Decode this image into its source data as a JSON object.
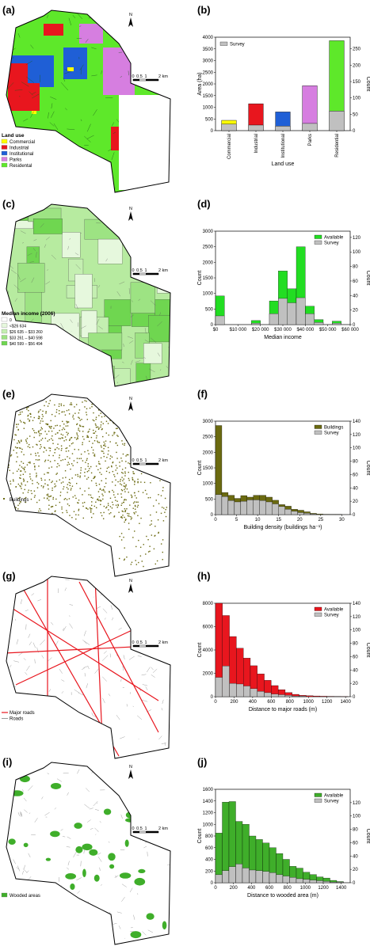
{
  "panels": [
    {
      "label": "(a)",
      "map": {
        "kind": "landuse",
        "north": "N",
        "scale": [
          "0",
          "0.5",
          "1",
          "2 km"
        ],
        "legend_title": "Land use",
        "legend": [
          {
            "label": "Commercial",
            "color": "#ffff00"
          },
          {
            "label": "Industrial",
            "color": "#e8161e"
          },
          {
            "label": "Institutional",
            "color": "#1f5fd6"
          },
          {
            "label": "Parks",
            "color": "#d67ee0"
          },
          {
            "label": "Residental",
            "color": "#5ee82a"
          }
        ]
      }
    },
    {
      "label": "(c)",
      "map": {
        "kind": "income",
        "north": "N",
        "scale": [
          "0",
          "0.5",
          "1",
          "2 km"
        ],
        "legend_title": "Median income (2006)",
        "legend": [
          {
            "label": "0",
            "color": "#ffffff"
          },
          {
            "label": "<$26 634",
            "color": "#e6f8dd"
          },
          {
            "label": "$26 635 – $33 260",
            "color": "#c4efb1"
          },
          {
            "label": "$33 261 – $40 598",
            "color": "#9de383"
          },
          {
            "label": "$40 599 – $56 494",
            "color": "#6fd650"
          }
        ]
      }
    },
    {
      "label": "(e)",
      "map": {
        "kind": "buildings",
        "north": "N",
        "scale": [
          "0",
          "0.5",
          "1",
          "2 km"
        ],
        "legend_title": "",
        "legend": [
          {
            "label": "Buildings",
            "color": "#6b6a10"
          }
        ]
      }
    },
    {
      "label": "(g)",
      "map": {
        "kind": "roads",
        "north": "N",
        "scale": [
          "0",
          "0.5",
          "1",
          "2 km"
        ],
        "legend_title": "",
        "legend": [
          {
            "label": "Major roads",
            "color": "#e8161e"
          },
          {
            "label": "Roads",
            "color": "#555555"
          }
        ]
      }
    },
    {
      "label": "(i)",
      "map": {
        "kind": "wooded",
        "north": "N",
        "scale": [
          "0",
          "0.5",
          "1",
          "2 km"
        ],
        "legend_title": "",
        "legend": [
          {
            "label": "Wooded areas",
            "color": "#3fae2a"
          }
        ]
      }
    }
  ],
  "chart_data": [
    {
      "label": "(b)",
      "type": "bar",
      "xlabel": "Land use",
      "ylabel": "Area (ha)",
      "y2label": "Count",
      "categories": [
        "Commercial",
        "Industrial",
        "Institutional",
        "Parks",
        "Residential"
      ],
      "ylim": [
        0,
        4000
      ],
      "yticks": [
        0,
        500,
        1000,
        1500,
        2000,
        2500,
        3000,
        3500,
        4000
      ],
      "y2lim": [
        0,
        285.7
      ],
      "y2ticks": [
        0,
        50,
        100,
        150,
        200,
        250
      ],
      "series": [
        {
          "values": [
            440,
            1150,
            800,
            1920,
            3850
          ],
          "colors": [
            "#ffff00",
            "#e8161e",
            "#1f5fd6",
            "#d67ee0",
            "#5ee82a"
          ]
        },
        {
          "name": "Survey",
          "values": [
            20,
            17,
            14,
            22,
            60
          ],
          "axis": "right",
          "color": "#c0c0c0"
        }
      ],
      "legend_position": "top-left"
    },
    {
      "label": "(d)",
      "type": "bar",
      "xlabel": "Median income",
      "ylabel": "Count",
      "y2label": "Count",
      "xlim": [
        0,
        60000
      ],
      "xticks": [
        0,
        10000,
        20000,
        30000,
        40000,
        50000,
        60000
      ],
      "xticklabels": [
        "$0",
        "$10 000",
        "$20 000",
        "$30 000",
        "$40 000",
        "$50 000",
        "$60 000"
      ],
      "ylim": [
        0,
        3000
      ],
      "yticks": [
        0,
        500,
        1000,
        1500,
        2000,
        2500,
        3000
      ],
      "y2lim": [
        0,
        128.6
      ],
      "y2ticks": [
        0,
        20,
        40,
        60,
        80,
        100,
        120
      ],
      "bin_starts": [
        0,
        4000,
        8000,
        12000,
        16000,
        20000,
        24000,
        28000,
        32000,
        36000,
        40000,
        44000,
        48000,
        52000,
        56000
      ],
      "bin_width": 4000,
      "series": [
        {
          "name": "Available",
          "values": [
            920,
            0,
            0,
            0,
            130,
            0,
            760,
            1720,
            1150,
            2500,
            590,
            160,
            0,
            110,
            0
          ],
          "color": "#22dd22"
        },
        {
          "name": "Survey",
          "values": [
            12,
            0,
            0,
            0,
            2,
            0,
            15,
            36,
            30,
            37,
            15,
            3,
            0,
            2,
            0
          ],
          "axis": "right",
          "color": "#c0c0c0"
        }
      ],
      "legend_position": "top-right"
    },
    {
      "label": "(f)",
      "type": "bar",
      "xlabel": "Building density (buildings ha⁻¹)",
      "ylabel": "Count",
      "y2label": "Count",
      "xlim": [
        0,
        32
      ],
      "xticks": [
        0,
        5,
        10,
        15,
        20,
        25,
        30
      ],
      "ylim": [
        0,
        3000
      ],
      "yticks": [
        0,
        500,
        1000,
        1500,
        2000,
        2500,
        3000
      ],
      "y2lim": [
        0,
        140
      ],
      "y2ticks": [
        0,
        20,
        40,
        60,
        80,
        100,
        120,
        140
      ],
      "bin_starts": [
        0,
        1.5,
        3,
        4.5,
        6,
        7.5,
        9,
        10.5,
        12,
        13.5,
        15,
        16.5,
        18,
        19.5,
        21,
        22.5,
        24,
        25.5,
        27,
        28.5
      ],
      "bin_width": 1.5,
      "series": [
        {
          "name": "Buildings",
          "values": [
            2860,
            710,
            620,
            520,
            610,
            560,
            620,
            620,
            560,
            460,
            320,
            270,
            170,
            140,
            90,
            40,
            20,
            10,
            5,
            5
          ],
          "color": "#6b6a10"
        },
        {
          "name": "Survey",
          "values": [
            30,
            27,
            21,
            19,
            20,
            22,
            22,
            21,
            19,
            16,
            12,
            8,
            5,
            3,
            2,
            1,
            0,
            0,
            0,
            0
          ],
          "axis": "right",
          "color": "#c0c0c0"
        }
      ],
      "legend_position": "top-right"
    },
    {
      "label": "(h)",
      "type": "bar",
      "xlabel": "Distance to major roads (m)",
      "ylabel": "Count",
      "y2label": "Count",
      "xlim": [
        0,
        1450
      ],
      "xticks": [
        0,
        200,
        400,
        600,
        800,
        1000,
        1200,
        1400
      ],
      "ylim": [
        0,
        8000
      ],
      "yticks": [
        0,
        2000,
        4000,
        6000,
        8000
      ],
      "y2lim": [
        0,
        140
      ],
      "y2ticks": [
        0,
        20,
        40,
        60,
        80,
        100,
        120,
        140
      ],
      "bin_starts": [
        0,
        75,
        150,
        225,
        300,
        375,
        450,
        525,
        600,
        675,
        750,
        825,
        900,
        975,
        1050,
        1125,
        1200,
        1275,
        1350
      ],
      "bin_width": 75,
      "series": [
        {
          "name": "Available",
          "values": [
            8000,
            6950,
            5150,
            4150,
            3300,
            2650,
            1950,
            1400,
            950,
            600,
            350,
            200,
            120,
            80,
            60,
            40,
            30,
            20,
            10
          ],
          "color": "#e8161e"
        },
        {
          "name": "Survey",
          "values": [
            29,
            46,
            20,
            19,
            16,
            12,
            8,
            6,
            4,
            3,
            2,
            1,
            1,
            0,
            0,
            0,
            0,
            0,
            0
          ],
          "axis": "right",
          "color": "#c0c0c0"
        }
      ],
      "legend_position": "top-right"
    },
    {
      "label": "(j)",
      "type": "bar",
      "xlabel": "Distance to wooded area (m)",
      "ylabel": "Count",
      "y2label": "Count",
      "xlim": [
        0,
        1500
      ],
      "xticks": [
        0,
        200,
        400,
        600,
        800,
        1000,
        1200,
        1400
      ],
      "ylim": [
        0,
        1600
      ],
      "yticks": [
        0,
        200,
        400,
        600,
        800,
        1000,
        1200,
        1400,
        1600
      ],
      "y2lim": [
        0,
        140
      ],
      "y2ticks": [
        0,
        20,
        40,
        60,
        80,
        100,
        120
      ],
      "bin_starts": [
        0,
        75,
        150,
        225,
        300,
        375,
        450,
        525,
        600,
        675,
        750,
        825,
        900,
        975,
        1050,
        1125,
        1200,
        1275,
        1350
      ],
      "bin_width": 75,
      "series": [
        {
          "name": "Available",
          "values": [
            850,
            1380,
            1390,
            1050,
            1000,
            800,
            740,
            680,
            600,
            500,
            400,
            280,
            250,
            180,
            140,
            100,
            80,
            40,
            20
          ],
          "color": "#3fae2a"
        },
        {
          "name": "Survey",
          "values": [
            12,
            18,
            24,
            28,
            22,
            19,
            18,
            17,
            15,
            12,
            10,
            8,
            6,
            5,
            4,
            3,
            2,
            1,
            1
          ],
          "axis": "right",
          "color": "#c0c0c0"
        }
      ],
      "legend_position": "top-right"
    }
  ]
}
